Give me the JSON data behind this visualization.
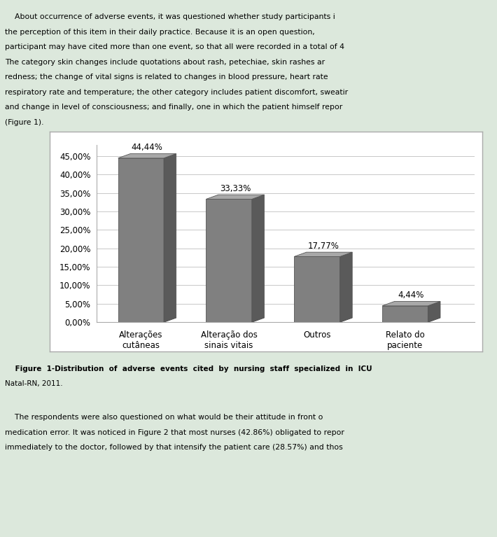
{
  "categories": [
    "Alterações\ncutâneas",
    "Alteração dos\nsinais vitais",
    "Outros",
    "Relato do\npaciente"
  ],
  "values": [
    44.44,
    33.33,
    17.77,
    4.44
  ],
  "labels": [
    "44,44%",
    "33,33%",
    "17,77%",
    "4,44%"
  ],
  "bar_color_face": "#808080",
  "bar_color_top": "#a8a8a8",
  "bar_color_side": "#5a5a5a",
  "background_color": "#dce8dc",
  "plot_bg_color": "#ffffff",
  "box_bg_color": "#ffffff",
  "yticks": [
    0.0,
    5.0,
    10.0,
    15.0,
    20.0,
    25.0,
    30.0,
    35.0,
    40.0,
    45.0
  ],
  "ytick_labels": [
    "0,00%",
    "5,00%",
    "10,00%",
    "15,00%",
    "20,00%",
    "25,00%",
    "30,00%",
    "35,00%",
    "40,00%",
    "45,00%"
  ],
  "ylim": [
    0,
    48
  ],
  "grid_color": "#c8c8c8",
  "text_color": "#000000",
  "label_fontsize": 8.5,
  "tick_fontsize": 8.5,
  "text_lines_top": [
    "    About occurrence of adverse events, it was questioned whether study participants i",
    "the perception of this item in their daily practice. Because it is an open question,",
    "participant may have cited more than one event, so that all were recorded in a total of 4",
    "The category skin changes include quotations about rash, petechiae, skin rashes ar",
    "redness; the change of vital signs is related to changes in blood pressure, heart rate",
    "respiratory rate and temperature; the other category includes patient discomfort, sweatir",
    "and change in level of consciousness; and finally, one in which the patient himself repor",
    "(Figure 1)."
  ],
  "caption_lines": [
    "    Figure  1-Distribution  of  adverse  events  cited  by  nursing  staff  specialized  in  ICU",
    "Natal-RN, 2011."
  ],
  "text_lines_bottom": [
    "    The respondents were also questioned on what would be their attitude in front o",
    "medication error. It was noticed in Figure 2 that most nurses (42.86%) obligated to repor",
    "immediately to the doctor, followed by that intensify the patient care (28.57%) and thos"
  ],
  "bar_edge_color": "#555555",
  "spine_color": "#aaaaaa",
  "page_bg": "#dce8dc"
}
